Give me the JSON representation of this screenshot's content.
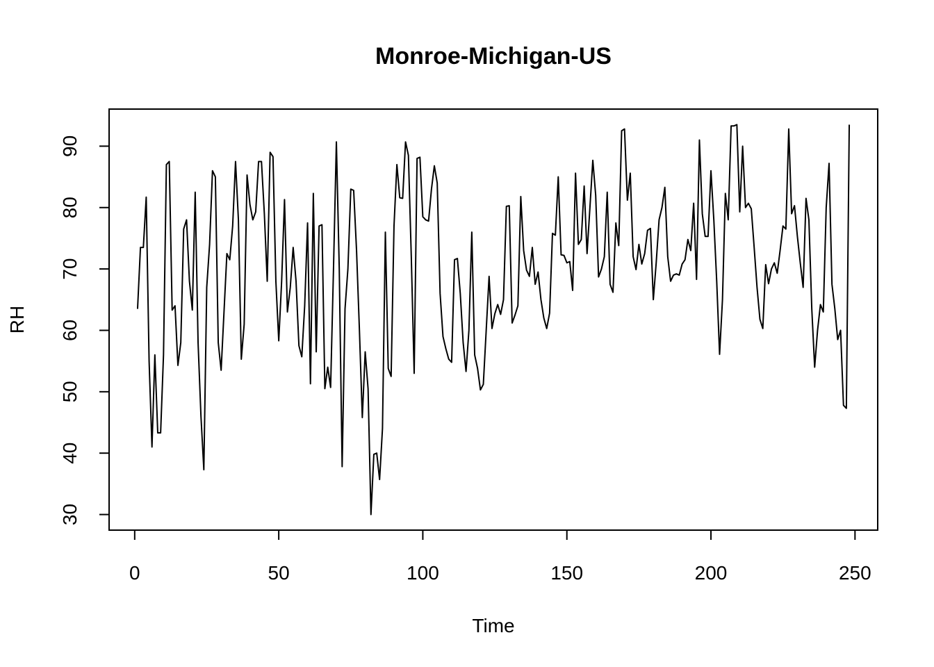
{
  "chart_data": {
    "type": "line",
    "title": "Monroe-Michigan-US",
    "x_label": "Time",
    "y_label": "RH",
    "x": [
      1,
      2,
      3,
      4,
      5,
      6,
      7,
      8,
      9,
      10,
      11,
      12,
      13,
      14,
      15,
      16,
      17,
      18,
      19,
      20,
      21,
      22,
      23,
      24,
      25,
      26,
      27,
      28,
      29,
      30,
      31,
      32,
      33,
      34,
      35,
      36,
      37,
      38,
      39,
      40,
      41,
      42,
      43,
      44,
      45,
      46,
      47,
      48,
      49,
      50,
      51,
      52,
      53,
      54,
      55,
      56,
      57,
      58,
      59,
      60,
      61,
      62,
      63,
      64,
      65,
      66,
      67,
      68,
      69,
      70,
      71,
      72,
      73,
      74,
      75,
      76,
      77,
      78,
      79,
      80,
      81,
      82,
      83,
      84,
      85,
      86,
      87,
      88,
      89,
      90,
      91,
      92,
      93,
      94,
      95,
      96,
      97,
      98,
      99,
      100,
      101,
      102,
      103,
      104,
      105,
      106,
      107,
      108,
      109,
      110,
      111,
      112,
      113,
      114,
      115,
      116,
      117,
      118,
      119,
      120,
      121,
      122,
      123,
      124,
      125,
      126,
      127,
      128,
      129,
      130,
      131,
      132,
      133,
      134,
      135,
      136,
      137,
      138,
      139,
      140,
      141,
      142,
      143,
      144,
      145,
      146,
      147,
      148,
      149,
      150,
      151,
      152,
      153,
      154,
      155,
      156,
      157,
      158,
      159,
      160,
      161,
      162,
      163,
      164,
      165,
      166,
      167,
      168,
      169,
      170,
      171,
      172,
      173,
      174,
      175,
      176,
      177,
      178,
      179,
      180,
      181,
      182,
      183,
      184,
      185,
      186,
      187,
      188,
      189,
      190,
      191,
      192,
      193,
      194,
      195,
      196,
      197,
      198,
      199,
      200,
      201,
      202,
      203,
      204,
      205,
      206,
      207,
      208,
      209,
      210,
      211,
      212,
      213,
      214,
      215,
      216,
      217,
      218,
      219,
      220,
      221,
      222,
      223,
      224,
      225,
      226,
      227,
      228,
      229,
      230,
      231,
      232,
      233,
      234,
      235,
      236,
      237,
      238,
      239,
      240,
      241,
      242,
      243,
      244,
      245,
      246,
      247,
      248
    ],
    "values": [
      63.5,
      73.5,
      73.5,
      81.7,
      55,
      41,
      56,
      43.3,
      43.3,
      56,
      87,
      87.5,
      63.3,
      64,
      54.3,
      58,
      76.5,
      78,
      68,
      63.3,
      82.5,
      58,
      46,
      37.3,
      67,
      74,
      86,
      85,
      58,
      53.5,
      63,
      72.5,
      71.5,
      77,
      87.5,
      78,
      55.3,
      61,
      85.3,
      80.5,
      78,
      79.3,
      87.5,
      87.5,
      79,
      68,
      89,
      88.3,
      68,
      58.3,
      68,
      81.3,
      63,
      67,
      73.5,
      68,
      57.5,
      55.7,
      64,
      77.5,
      51.3,
      82.3,
      56.5,
      77,
      77.2,
      50.5,
      54,
      50.7,
      70,
      90.7,
      70,
      37.8,
      63.5,
      70,
      83,
      82.8,
      73,
      60,
      45.8,
      56.5,
      50.5,
      30,
      39.8,
      40,
      35.7,
      44,
      76,
      53.8,
      52.5,
      77,
      87,
      81.6,
      81.5,
      90.7,
      88.5,
      72,
      53,
      88,
      88.2,
      78.5,
      78,
      77.8,
      83,
      86.8,
      84,
      66,
      59,
      57,
      55.3,
      54.8,
      71.5,
      71.7,
      66,
      58,
      53.3,
      60,
      76,
      56,
      53.8,
      50.3,
      51.2,
      60,
      68.8,
      60.3,
      62.7,
      64.2,
      62.6,
      65,
      80.2,
      80.3,
      61.2,
      62.5,
      64,
      81.8,
      73,
      69.8,
      68.8,
      73.5,
      67.5,
      69.5,
      65,
      62,
      60.3,
      62.8,
      75.8,
      75.5,
      85,
      72.3,
      72.2,
      71,
      71.2,
      66.5,
      85.6,
      74,
      74.8,
      83.5,
      72.5,
      80,
      87.7,
      82,
      68.7,
      70,
      72,
      82.5,
      67.5,
      66.2,
      77.5,
      73.8,
      92.5,
      92.8,
      81.2,
      85.6,
      72,
      69.9,
      74,
      70.8,
      72.5,
      76.3,
      76.6,
      65,
      71,
      78,
      80,
      83.3,
      72,
      68,
      69,
      69.2,
      69,
      70.8,
      71.5,
      74.8,
      73,
      80.7,
      68.3,
      91,
      79,
      75.3,
      75.3,
      86,
      78,
      68,
      56.1,
      65,
      82.3,
      78,
      93.3,
      93.3,
      93.5,
      79.3,
      90,
      80,
      80.7,
      79.8,
      73.5,
      67,
      61.8,
      60.3,
      70.7,
      67.6,
      70,
      71,
      69.3,
      73,
      77,
      76.5,
      92.8,
      79,
      80.3,
      75.3,
      71,
      67,
      81.5,
      78,
      63.5,
      54,
      60,
      64.2,
      63,
      80,
      87.2,
      67.5,
      63.5,
      58.5,
      60,
      47.8,
      47.3,
      93.5
    ],
    "color": "#000000",
    "xlim": [
      -8.88,
      257.88
    ],
    "xticks": [
      0,
      50,
      100,
      150,
      200,
      250
    ],
    "ylim": [
      27.46,
      96.04
    ],
    "yticks": [
      30,
      40,
      50,
      60,
      70,
      80,
      90
    ]
  }
}
